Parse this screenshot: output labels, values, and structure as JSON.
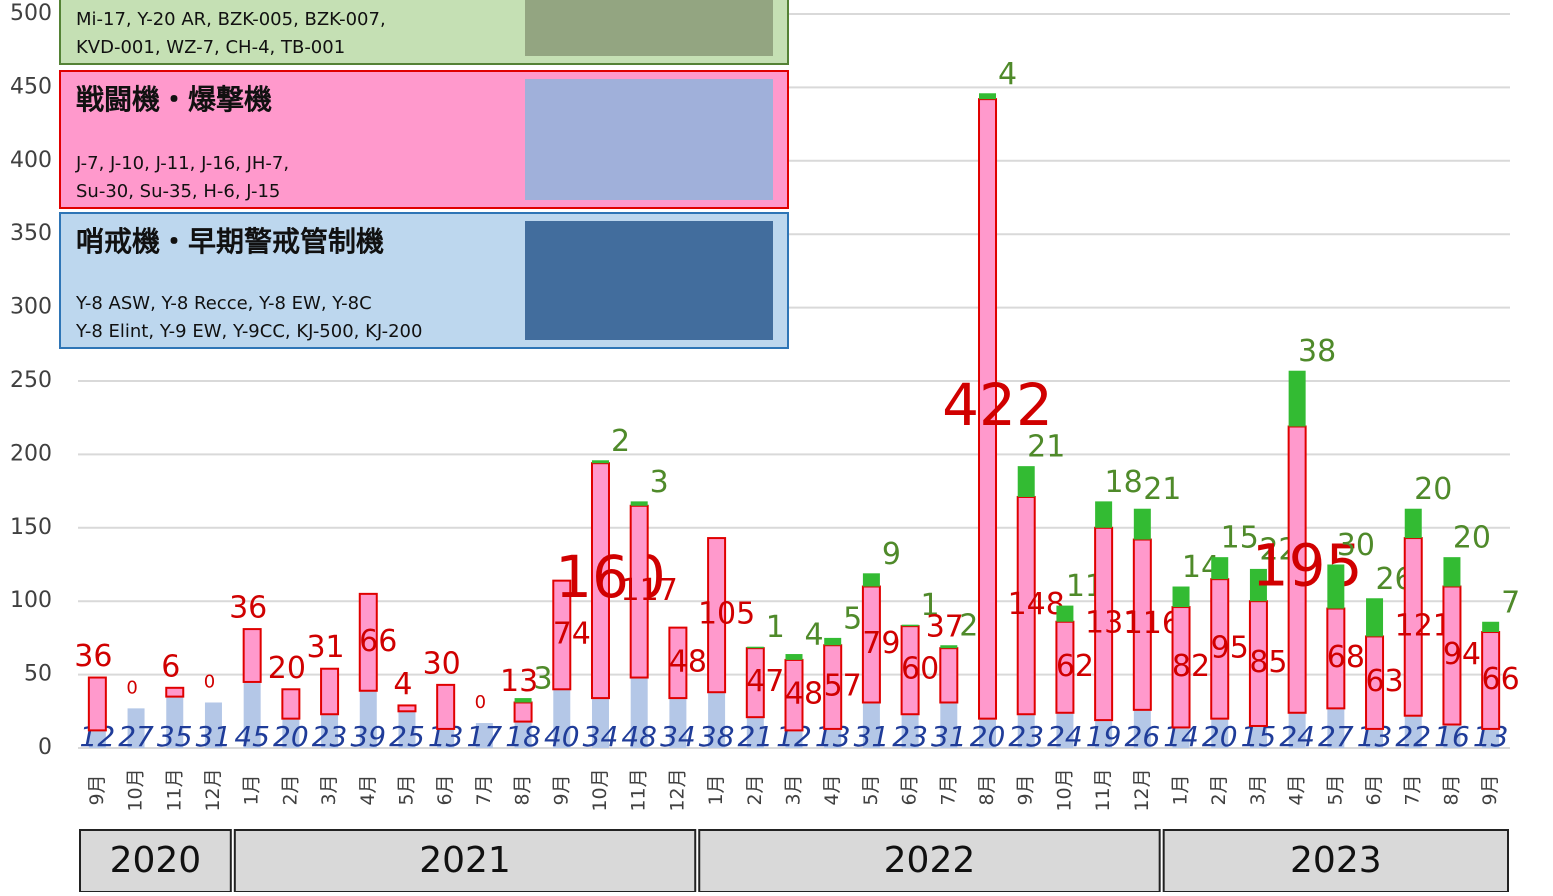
{
  "chart_data": {
    "type": "bar",
    "stacked": true,
    "categories": [
      "9月",
      "10月",
      "11月",
      "12月",
      "1月",
      "2月",
      "3月",
      "4月",
      "5月",
      "6月",
      "7月",
      "8月",
      "9月",
      "10月",
      "11月",
      "12月",
      "1月",
      "2月",
      "3月",
      "4月",
      "5月",
      "6月",
      "7月",
      "8月",
      "9月",
      "10月",
      "11月",
      "12月",
      "1月",
      "2月",
      "3月",
      "4月",
      "5月",
      "6月",
      "7月",
      "8月",
      "9月"
    ],
    "years": [
      "2020",
      "2021",
      "2022",
      "2023"
    ],
    "ylim": [
      0,
      500
    ],
    "yticks": [
      0,
      50,
      100,
      150,
      200,
      250,
      300,
      350,
      400,
      450,
      500
    ],
    "grid": true,
    "series": [
      {
        "name": "哨戒機・早期警戒管制機",
        "models": [
          "Y-8 ASW, Y-8 Recce, Y-8 EW, Y-8C",
          "Y-8 Elint, Y-9 EW, Y-9CC, KJ-500, KJ-200"
        ],
        "color": "#b4c7e7",
        "label_color": "#1f3c99",
        "values": [
          12,
          27,
          35,
          31,
          45,
          20,
          23,
          39,
          25,
          13,
          17,
          18,
          40,
          34,
          48,
          34,
          38,
          21,
          12,
          13,
          31,
          23,
          31,
          20,
          23,
          24,
          19,
          26,
          14,
          20,
          15,
          24,
          27,
          13,
          22,
          16,
          13
        ]
      },
      {
        "name": "戦闘機・爆撃機",
        "models": [
          "J-7, J-10, J-11, J-16, JH-7,",
          "Su-30, Su-35, H-6, J-15"
        ],
        "color": "#ff99cc",
        "label_color": "#d00000",
        "values": [
          36,
          0,
          6,
          0,
          36,
          20,
          31,
          66,
          4,
          30,
          0,
          13,
          74,
          160,
          117,
          48,
          105,
          47,
          48,
          57,
          79,
          60,
          37,
          422,
          148,
          62,
          131,
          116,
          82,
          95,
          85,
          195,
          68,
          63,
          121,
          94,
          66
        ]
      },
      {
        "models": [
          "Mi-17, Y-20 AR, BZK-005, BZK-007,",
          "KVD-001, WZ-7, CH-4, TB-001"
        ],
        "color": "#33bb33",
        "label_color": "#4f8a2a",
        "values": [
          null,
          null,
          null,
          null,
          null,
          null,
          null,
          null,
          null,
          null,
          null,
          3,
          null,
          2,
          3,
          null,
          null,
          1,
          4,
          5,
          9,
          1,
          2,
          4,
          21,
          11,
          18,
          21,
          14,
          15,
          22,
          38,
          30,
          26,
          20,
          20,
          7
        ]
      }
    ]
  }
}
